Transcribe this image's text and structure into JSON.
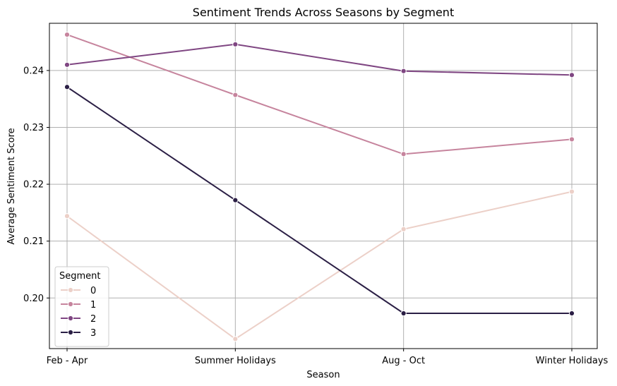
{
  "chart_data": {
    "type": "line",
    "title": "Sentiment Trends Across Seasons by Segment",
    "xlabel": "Season",
    "ylabel": "Average Sentiment Score",
    "categories": [
      "Feb - Apr",
      "Summer Holidays",
      "Aug - Oct",
      "Winter Holidays"
    ],
    "ylim": [
      0.1911,
      0.2483
    ],
    "yticks": [
      0.2,
      0.21,
      0.22,
      0.23,
      0.24
    ],
    "ytick_labels": [
      "0.20",
      "0.21",
      "0.22",
      "0.23",
      "0.24"
    ],
    "grid": true,
    "legend": {
      "title": "Segment",
      "placement": "lower-left"
    },
    "series": [
      {
        "name": "0",
        "color": "#ecd0c8",
        "values": [
          0.2144,
          0.1928,
          0.2121,
          0.2187
        ]
      },
      {
        "name": "1",
        "color": "#c6849d",
        "values": [
          0.2463,
          0.2357,
          0.2253,
          0.2279
        ]
      },
      {
        "name": "2",
        "color": "#7f4682",
        "values": [
          0.241,
          0.2446,
          0.2399,
          0.2392
        ]
      },
      {
        "name": "3",
        "color": "#2b1f45",
        "values": [
          0.2371,
          0.2172,
          0.1973,
          0.1973
        ]
      }
    ]
  }
}
